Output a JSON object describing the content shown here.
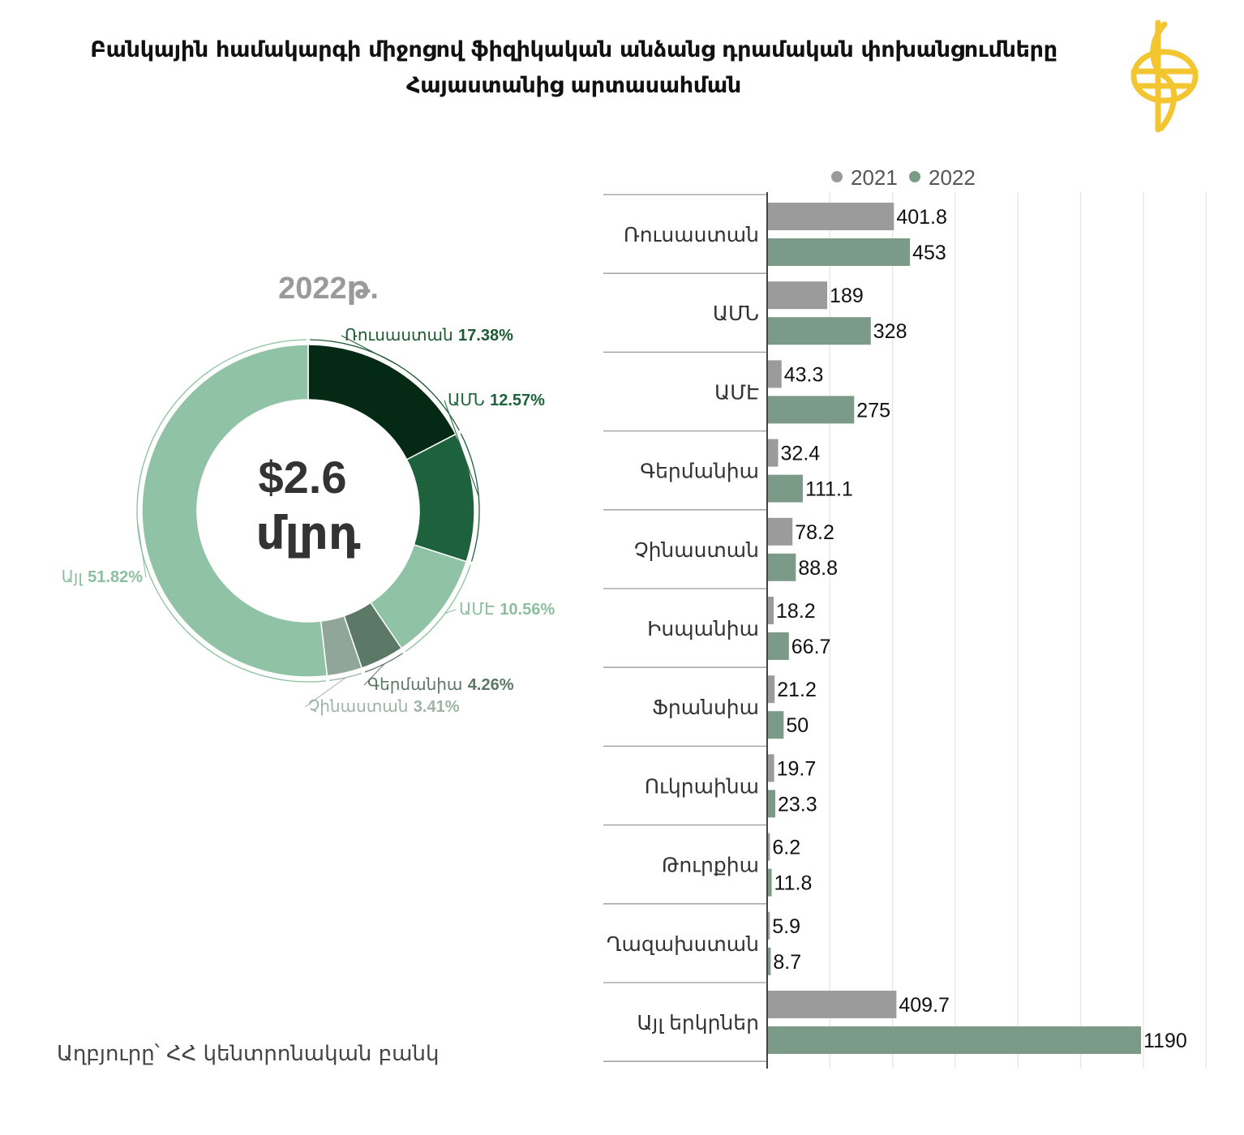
{
  "title_line1": "Բանկային համակարգի միջոցով ֆիզիկական անձանց դրամական փոխանցումները",
  "title_line2": "Հայաստանից արտասահման",
  "source": "Աղբյուրը՝ ՀՀ կենտրոնական բանկ",
  "colors": {
    "bar_2021": "#9b9b9b",
    "bar_2022": "#7b9b88",
    "logo": "#f2c531"
  },
  "chart_data": [
    {
      "type": "pie",
      "title": "2022թ.",
      "center_text": [
        "$2.6",
        "մլրդ"
      ],
      "slices": [
        {
          "label": "Ռուսաստան",
          "value": 17.38,
          "pct": "17.38%",
          "color": "#042a15",
          "label_color": "#1e5a32"
        },
        {
          "label": "ԱՄՆ",
          "value": 12.57,
          "pct": "12.57%",
          "color": "#1d623c",
          "label_color": "#1d623c"
        },
        {
          "label": "ԱՄԷ",
          "value": 10.56,
          "pct": "10.56%",
          "color": "#90c2a6",
          "label_color": "#8cbf9f"
        },
        {
          "label": "Գերմանիա",
          "value": 4.26,
          "pct": "4.26%",
          "color": "#5c7867",
          "label_color": "#5c7867"
        },
        {
          "label": "Չինաստան",
          "value": 3.41,
          "pct": "3.41%",
          "color": "#8fa699",
          "label_color": "#9db4a6"
        },
        {
          "label": "Այլ",
          "value": 51.82,
          "pct": "51.82%",
          "color": "#90c2a6",
          "label_color": "#8cbf9f"
        }
      ]
    },
    {
      "type": "bar",
      "orientation": "horizontal",
      "legend_position": "top",
      "categories": [
        "Ռուսաստան",
        "ԱՄՆ",
        "ԱՄԷ",
        "Գերմանիա",
        "Չինաստան",
        "Իսպանիա",
        "Ֆրանսիա",
        "Ուկրաինա",
        "Թուրքիա",
        "Ղազախստան",
        "Այլ երկրներ"
      ],
      "series": [
        {
          "name": "2021",
          "values": [
            401.8,
            189,
            43.3,
            32.4,
            78.2,
            18.2,
            21.2,
            19.7,
            6.2,
            5.9,
            409.7
          ],
          "labels": [
            "401.8",
            "189",
            "43.3",
            "32.4",
            "78.2",
            "18.2",
            "21.2",
            "19.7",
            "6.2",
            "5.9",
            "409.7"
          ]
        },
        {
          "name": "2022",
          "values": [
            453,
            328,
            275,
            111.1,
            88.8,
            66.7,
            50,
            23.3,
            11.8,
            8.7,
            1190
          ],
          "labels": [
            "453",
            "328",
            "275",
            "111.1",
            "88.8",
            "66.7",
            "50",
            "23.3",
            "11.8",
            "8.7",
            "1190"
          ]
        }
      ],
      "xlim": [
        0,
        1400
      ],
      "grid": true
    }
  ]
}
